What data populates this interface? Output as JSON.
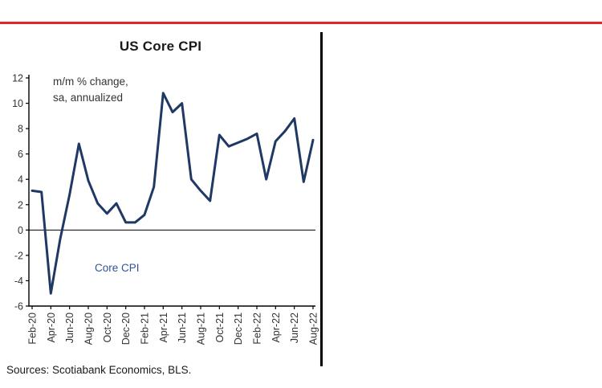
{
  "page": {
    "top_rule_color": "#e3242b",
    "separator_color": "#000000",
    "source_text": "Sources: Scotiabank Economics, BLS."
  },
  "chart_data": {
    "type": "line",
    "title": "US Core CPI",
    "annotation_line1": "m/m % change,",
    "annotation_line2": "sa, annualized",
    "series_name": "Core CPI",
    "categories": [
      "Feb-20",
      "Mar-20",
      "Apr-20",
      "May-20",
      "Jun-20",
      "Jul-20",
      "Aug-20",
      "Sep-20",
      "Oct-20",
      "Nov-20",
      "Dec-20",
      "Jan-21",
      "Feb-21",
      "Mar-21",
      "Apr-21",
      "May-21",
      "Jun-21",
      "Jul-21",
      "Aug-21",
      "Sep-21",
      "Oct-21",
      "Nov-21",
      "Dec-21",
      "Jan-22",
      "Feb-22",
      "Mar-22",
      "Apr-22",
      "May-22",
      "Jun-22",
      "Jul-22",
      "Aug-22"
    ],
    "values": [
      3.1,
      3.0,
      -5.0,
      -0.7,
      2.8,
      6.8,
      3.9,
      2.1,
      1.3,
      2.1,
      0.6,
      0.6,
      1.2,
      3.4,
      10.8,
      9.3,
      10.0,
      4.0,
      3.1,
      2.3,
      7.5,
      6.6,
      6.9,
      7.2,
      7.6,
      4.0,
      7.0,
      7.8,
      8.8,
      3.8,
      7.1
    ],
    "ylim": [
      -6,
      12
    ],
    "ytick_step": 2,
    "ytick_labels": [
      "-6",
      "-4",
      "-2",
      "0",
      "2",
      "4",
      "6",
      "8",
      "10",
      "12"
    ],
    "xtick_every": 2,
    "xtick_labels": [
      "Feb-20",
      "Apr-20",
      "Jun-20",
      "Aug-20",
      "Oct-20",
      "Dec-20",
      "Feb-21",
      "Apr-21",
      "Jun-21",
      "Aug-21",
      "Oct-21",
      "Dec-21",
      "Feb-22",
      "Apr-22",
      "Jun-22",
      "Aug-22"
    ],
    "grid": "off",
    "legend": "in-plot text label",
    "line_color": "#1f3864",
    "series_label_color": "#2f5597",
    "axis_color": "#000000",
    "zero_line": 0
  }
}
